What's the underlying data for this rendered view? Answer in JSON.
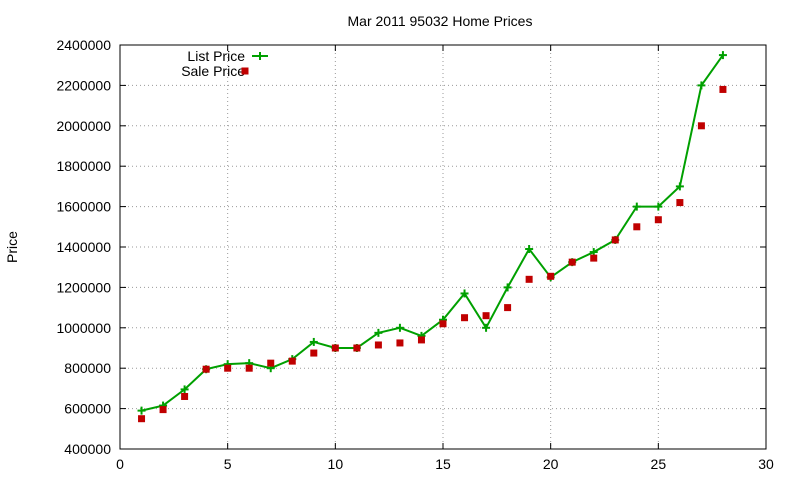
{
  "chart_data": {
    "type": "line",
    "title": "Mar 2011 95032 Home Prices",
    "xlabel": "",
    "ylabel": "Price",
    "xlim": [
      0,
      30
    ],
    "ylim": [
      400000,
      2400000
    ],
    "xticks": [
      0,
      5,
      10,
      15,
      20,
      25,
      30
    ],
    "yticks": [
      400000,
      600000,
      800000,
      1000000,
      1200000,
      1400000,
      1600000,
      1800000,
      2000000,
      2200000,
      2400000
    ],
    "grid": true,
    "legend_position": "top-left",
    "series": [
      {
        "name": "List Price",
        "style": "line+cross",
        "color": "#00a000",
        "x": [
          1,
          2,
          3,
          4,
          5,
          6,
          7,
          8,
          9,
          10,
          11,
          12,
          13,
          14,
          15,
          16,
          17,
          18,
          19,
          20,
          21,
          22,
          23,
          24,
          25,
          26,
          27,
          28
        ],
        "values": [
          590000,
          615000,
          695000,
          795000,
          820000,
          825000,
          800000,
          845000,
          930000,
          900000,
          900000,
          975000,
          1000000,
          960000,
          1040000,
          1170000,
          1000000,
          1200000,
          1390000,
          1250000,
          1325000,
          1375000,
          1435000,
          1600000,
          1600000,
          1700000,
          2200000,
          2350000
        ]
      },
      {
        "name": "Sale Price",
        "style": "square",
        "color": "#c00000",
        "x": [
          1,
          2,
          3,
          4,
          5,
          6,
          7,
          8,
          9,
          10,
          11,
          12,
          13,
          14,
          15,
          16,
          17,
          18,
          19,
          20,
          21,
          22,
          23,
          24,
          25,
          26,
          27,
          28
        ],
        "values": [
          550000,
          595000,
          660000,
          795000,
          800000,
          800000,
          825000,
          835000,
          875000,
          900000,
          900000,
          915000,
          925000,
          940000,
          1020000,
          1050000,
          1060000,
          1100000,
          1240000,
          1255000,
          1325000,
          1345000,
          1435000,
          1500000,
          1535000,
          1620000,
          2000000,
          2180000
        ]
      }
    ]
  }
}
